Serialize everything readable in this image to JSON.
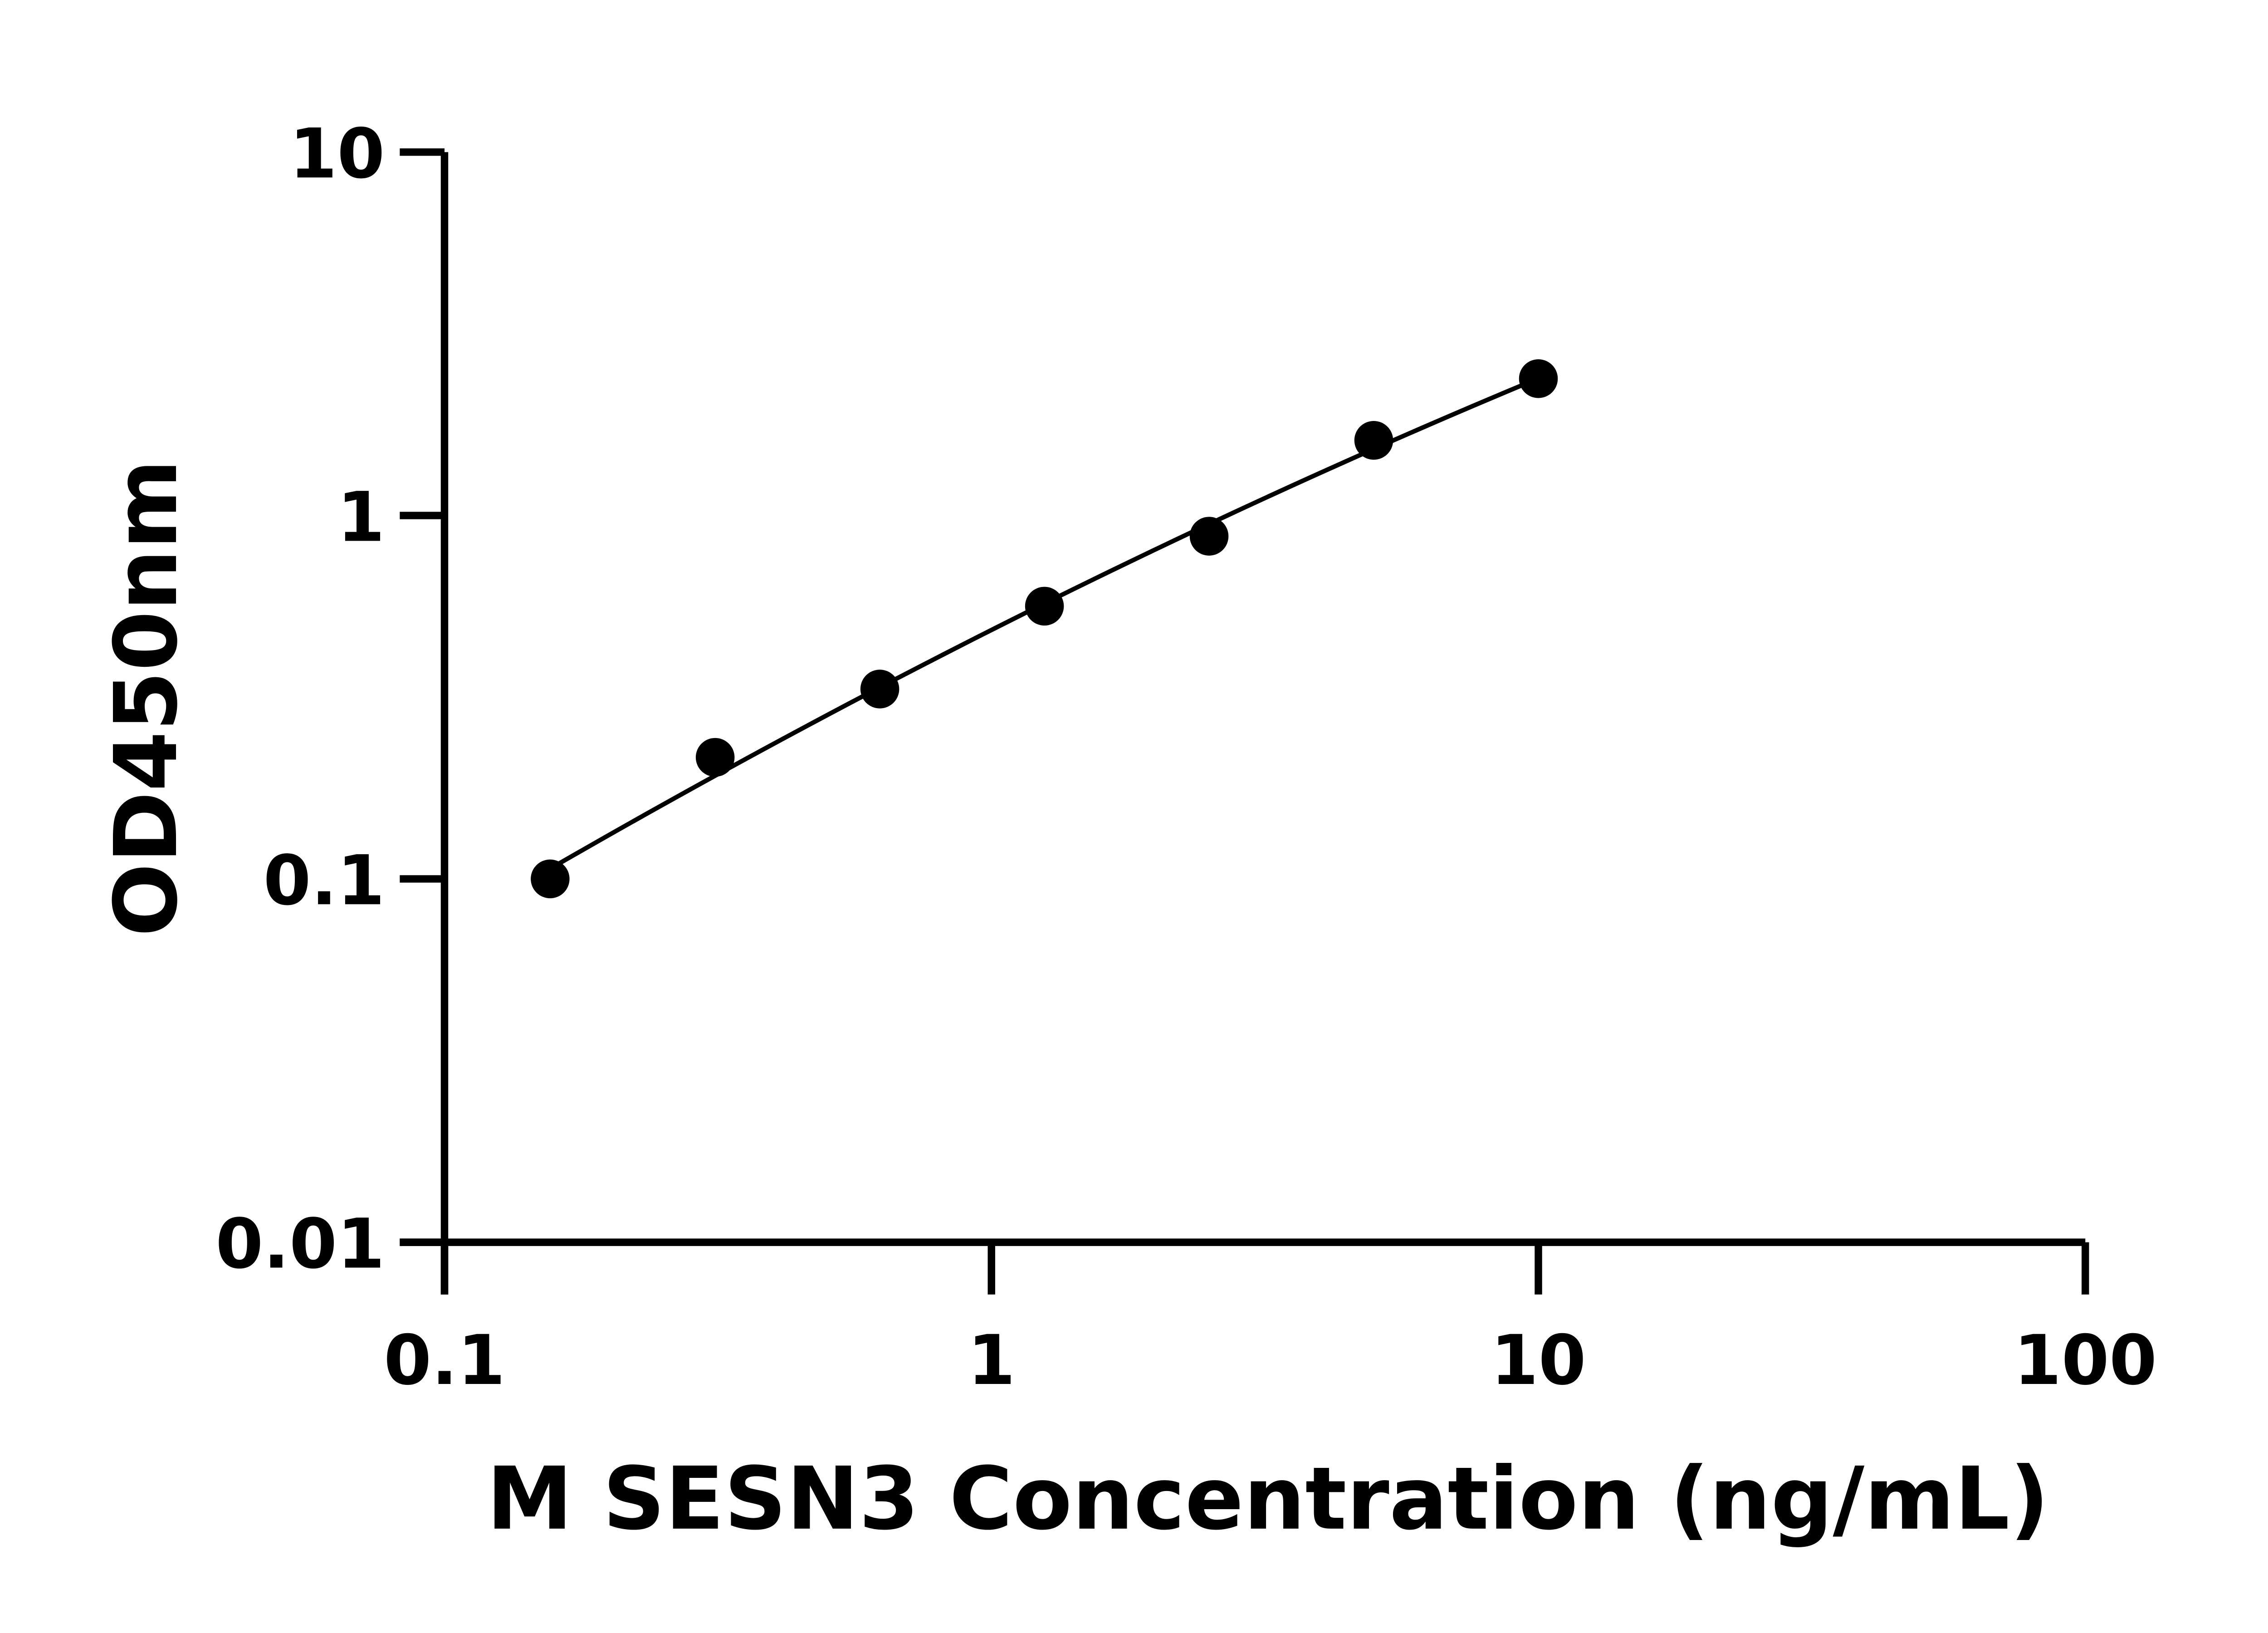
{
  "chart_data": {
    "type": "scatter",
    "title": "",
    "xlabel": "M SESN3 Concentration (ng/mL)",
    "ylabel": "OD450nm",
    "x_scale": "log",
    "y_scale": "log",
    "xlim": [
      0.1,
      100
    ],
    "ylim": [
      0.01,
      10
    ],
    "x_ticks": [
      "0.1",
      "1",
      "10",
      "100"
    ],
    "y_ticks": [
      "0.01",
      "0.1",
      "1",
      "10"
    ],
    "grid": false,
    "fit_line": true,
    "marker_color": "#000000",
    "series": [
      {
        "x": [
          0.156,
          0.3125,
          0.625,
          1.25,
          2.5,
          5,
          10
        ],
        "y": [
          0.1,
          0.216,
          0.333,
          0.563,
          0.877,
          1.61,
          2.38
        ]
      }
    ]
  }
}
